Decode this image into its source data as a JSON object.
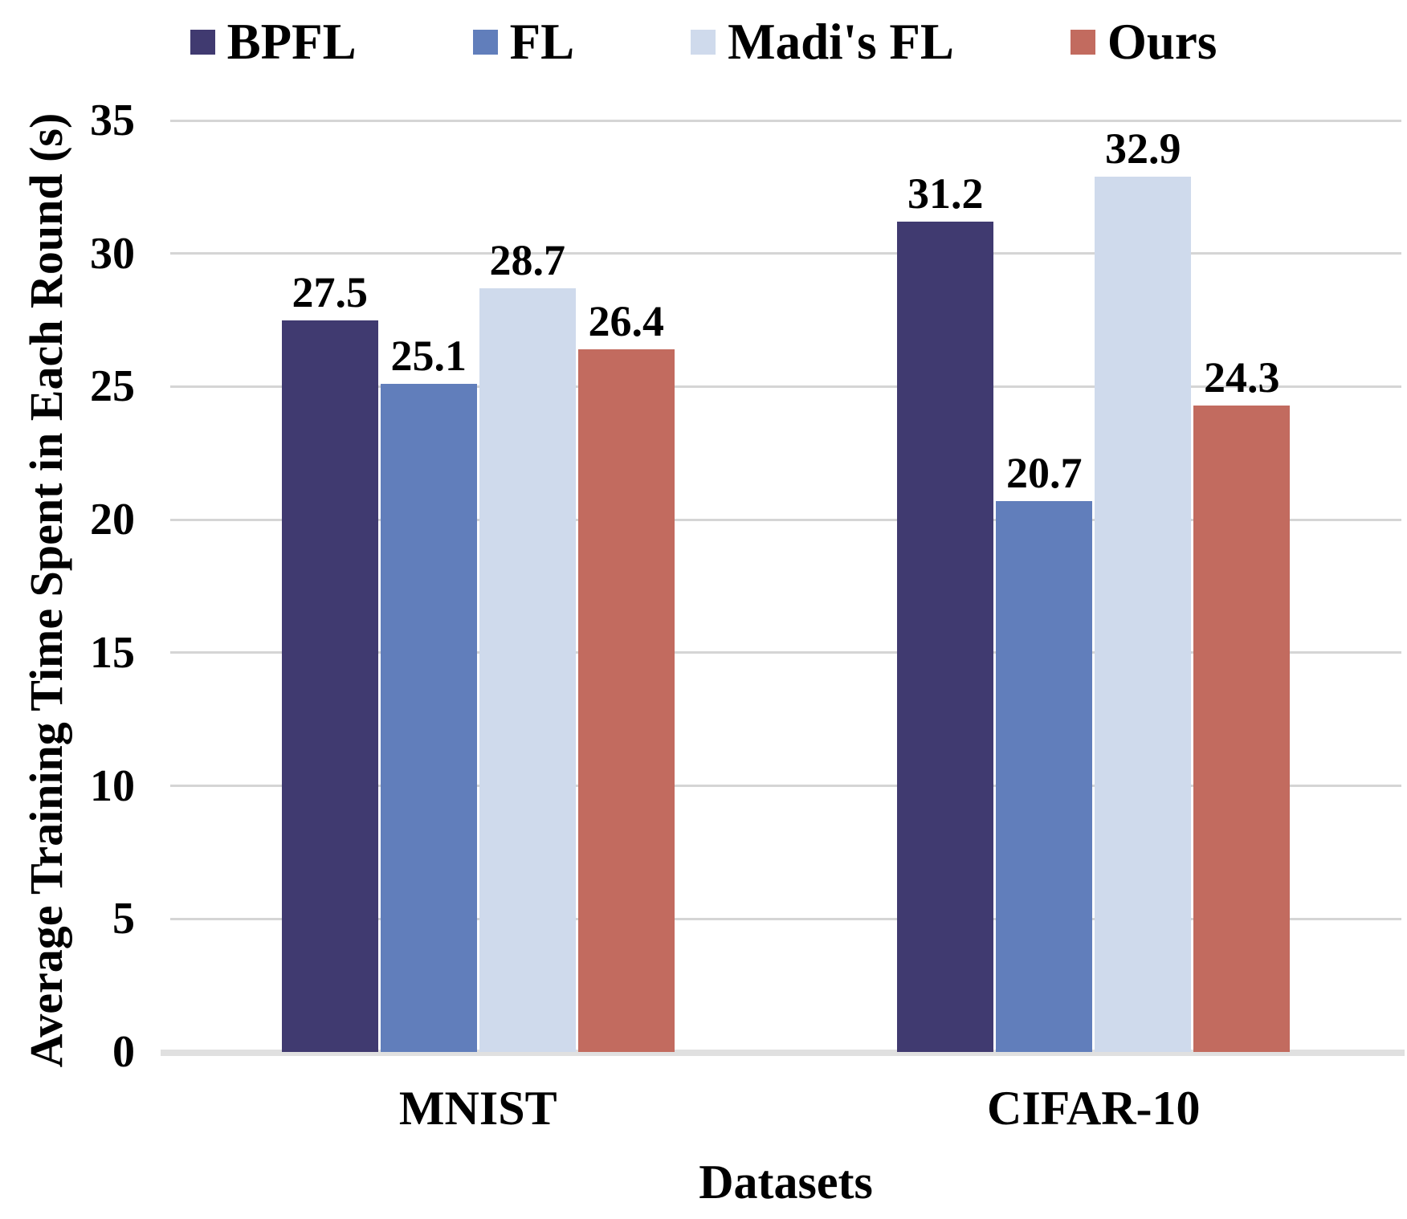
{
  "chart_data": {
    "type": "bar",
    "title": "",
    "categories": [
      "MNIST",
      "CIFAR-10"
    ],
    "series": [
      {
        "name": "BPFL",
        "color": "#403a70",
        "values": [
          27.5,
          31.2
        ]
      },
      {
        "name": "FL",
        "color": "#617ebb",
        "values": [
          25.1,
          20.7
        ]
      },
      {
        "name": "Madi's FL",
        "color": "#cfdaec",
        "values": [
          28.7,
          32.9
        ]
      },
      {
        "name": "Ours",
        "color": "#c26b5f",
        "values": [
          26.4,
          24.3
        ]
      }
    ],
    "xlabel": "Datasets",
    "ylabel": "Average Training Time Spent in Each Round (s)",
    "ylim": [
      0,
      35
    ],
    "yticks": [
      0,
      5,
      10,
      15,
      20,
      25,
      30,
      35
    ],
    "grid": true,
    "legend_position": "top",
    "value_labels": true
  },
  "colors": {
    "background": "#ffffff",
    "gridline": "#d5d5d5",
    "baseline": "#e0e0e0",
    "text": "#000000"
  }
}
